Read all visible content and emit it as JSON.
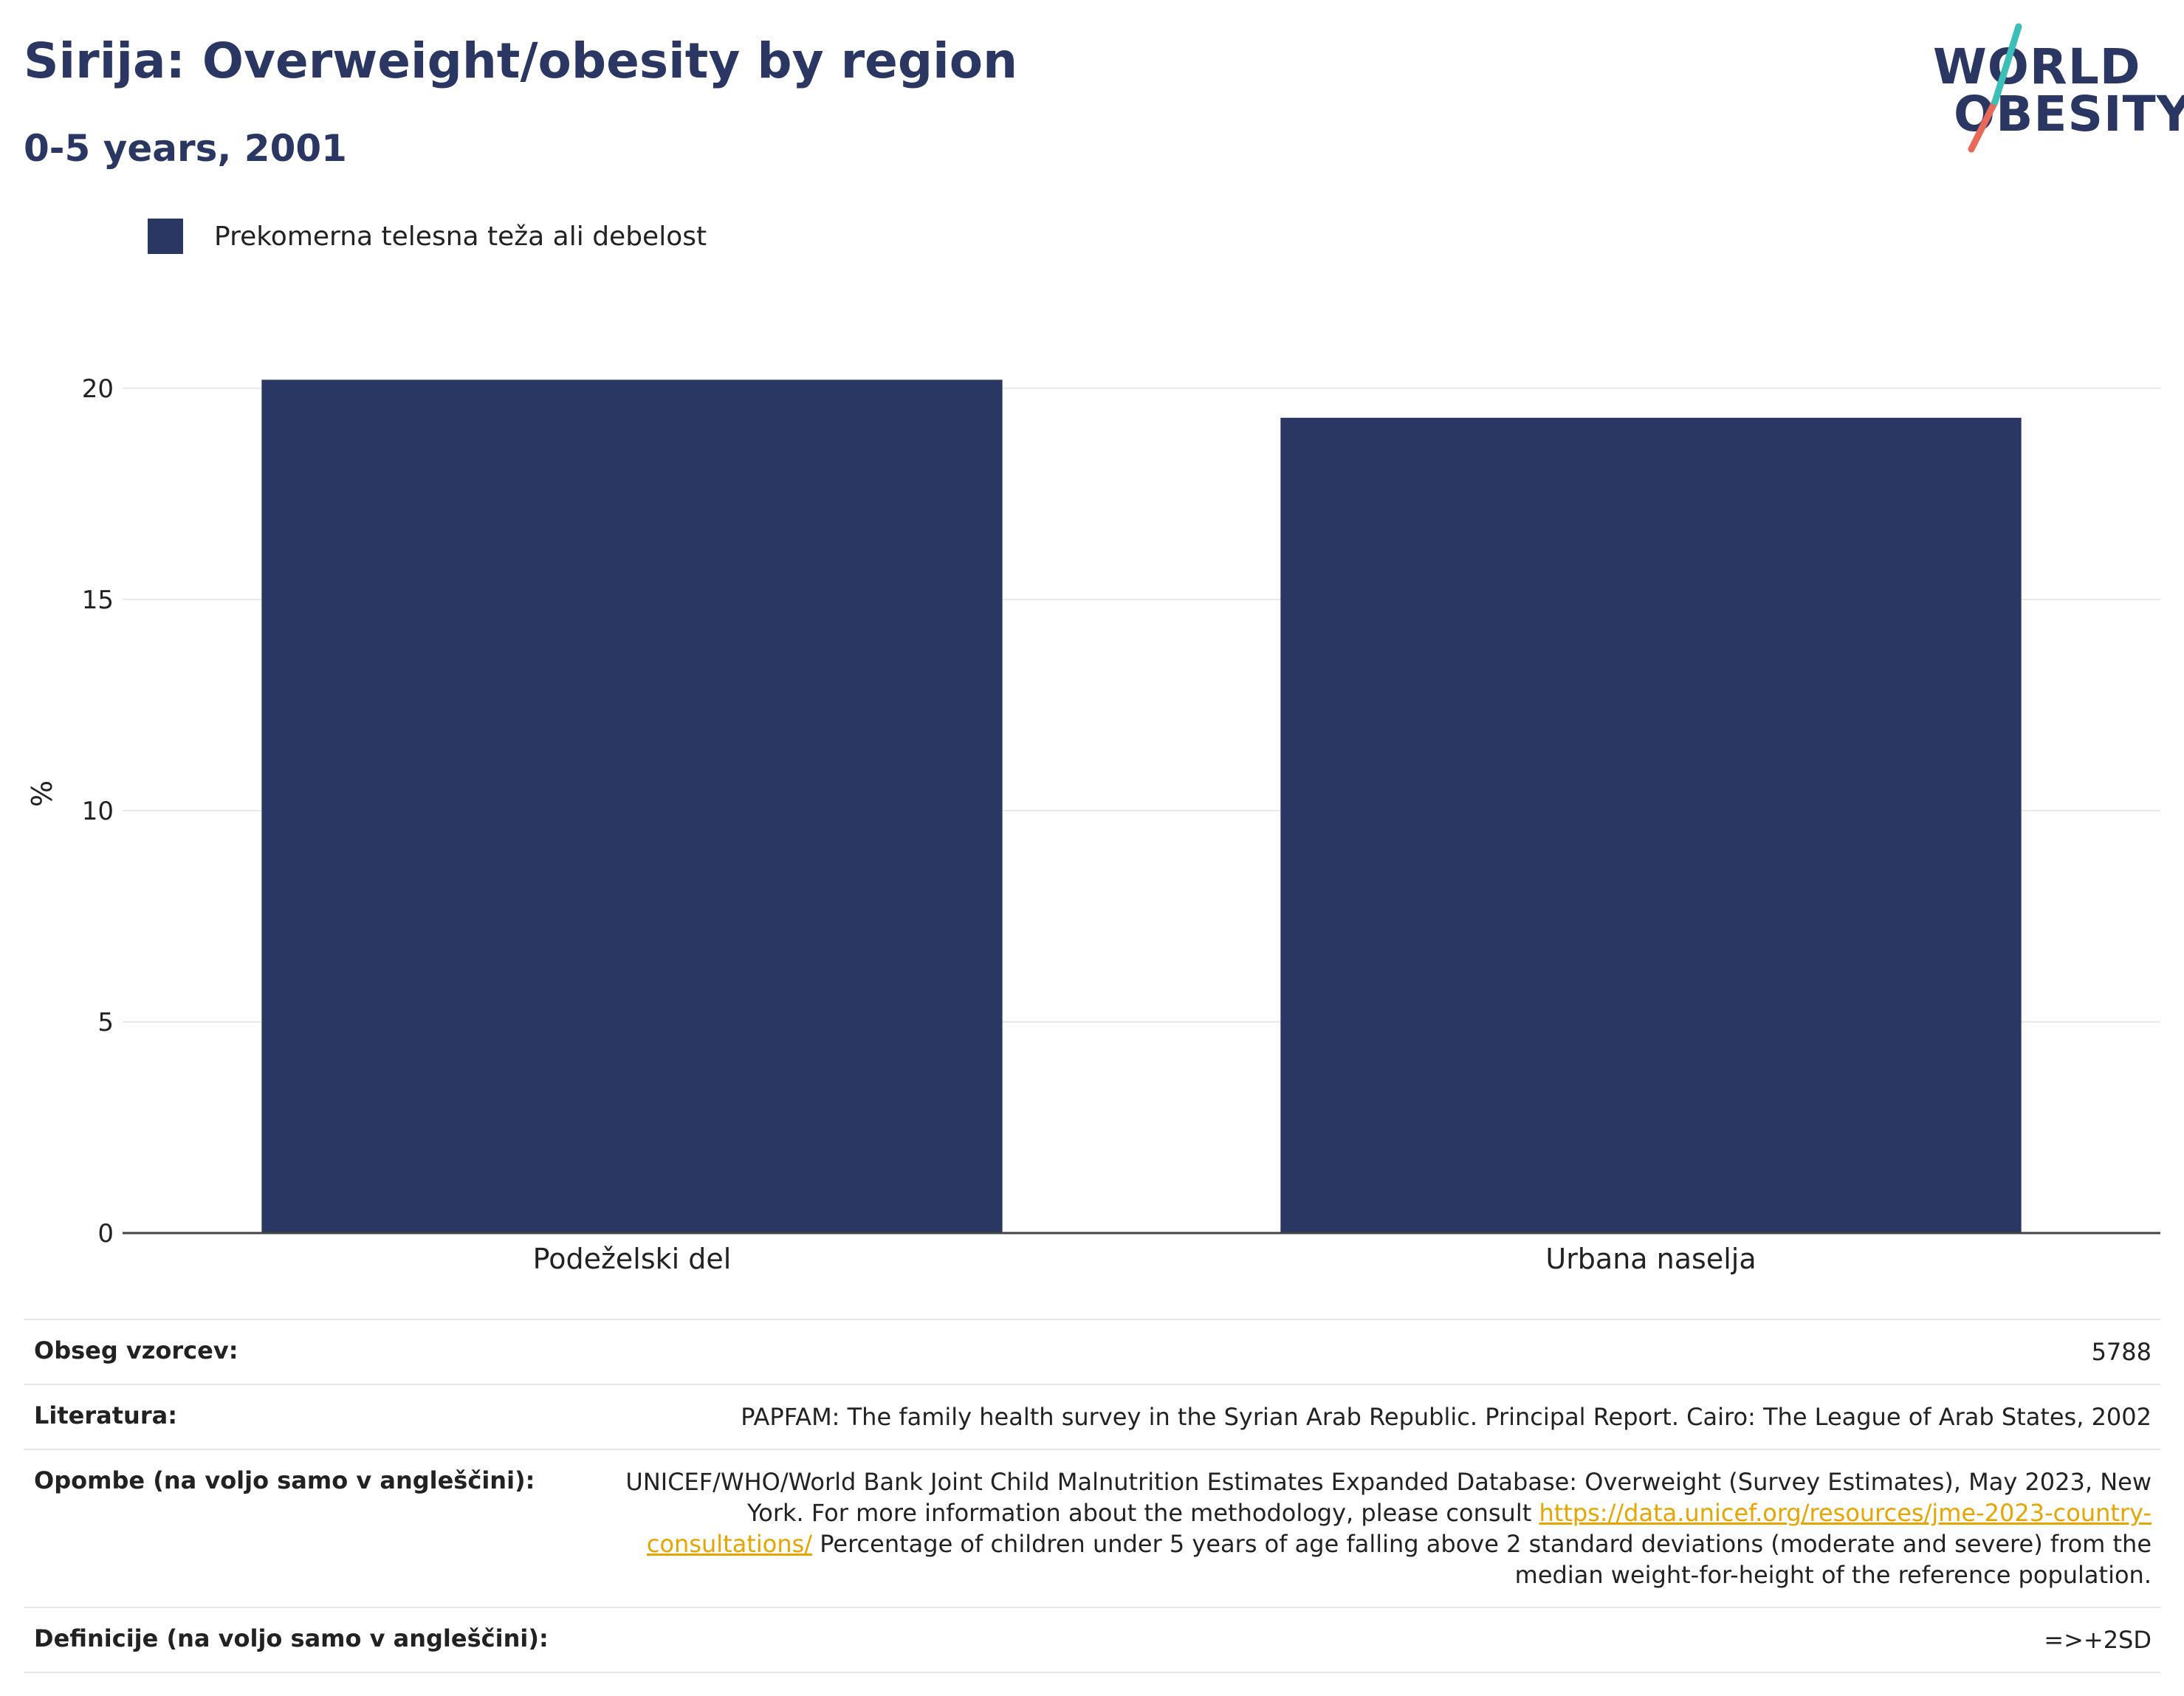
{
  "header": {
    "title": "Sirija: Overweight/obesity by region",
    "subtitle": "0-5 years, 2001"
  },
  "logo": {
    "line1": "WORLD",
    "line2": "OBESITY"
  },
  "colors": {
    "bar": "#2b3763",
    "title": "#2b3763",
    "link": "#e8a400",
    "logo_teal": "#3cbfb8",
    "logo_coral": "#e8685a"
  },
  "chart_data": {
    "type": "bar",
    "categories": [
      "Podeželski del",
      "Urbana naselja"
    ],
    "series": [
      {
        "name": "Prekomerna telesna teža ali debelost",
        "values": [
          20.2,
          19.3
        ]
      }
    ],
    "xlabel": "",
    "ylabel": "%",
    "ylim": [
      0,
      20.8
    ],
    "yticks": [
      0,
      5,
      10,
      15,
      20
    ],
    "grid": true,
    "legend": "top-left"
  },
  "info_table": [
    {
      "key": "Obseg vzorcev:",
      "value": "5788"
    },
    {
      "key": "Literatura:",
      "value": "PAPFAM: The family health survey in the Syrian Arab Republic. Principal Report. Cairo: The League of Arab States, 2002"
    },
    {
      "key": "Opombe (na voljo samo v angleščini):",
      "value_before": "UNICEF/WHO/World Bank Joint Child Malnutrition Estimates Expanded Database: Overweight (Survey Estimates), May 2023, New York. For more information about the methodology, please consult ",
      "link": "https://data.unicef.org/resources/jme-2023-country-consultations/",
      "value_after": " Percentage of children under 5 years of age falling above 2 standard deviations (moderate and severe) from the median weight-for-height of the reference population."
    },
    {
      "key": "Definicije (na voljo samo v angleščini):",
      "value": "=>+2SD"
    }
  ]
}
